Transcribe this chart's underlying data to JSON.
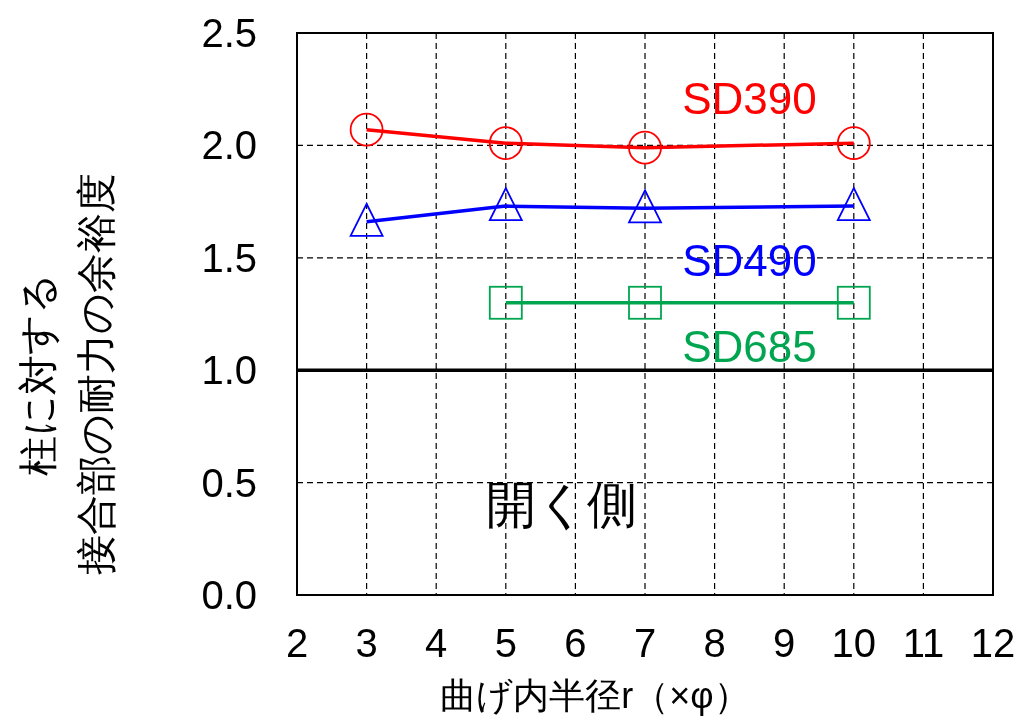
{
  "chart_data": {
    "type": "line",
    "xlabel": "曲げ内半径r（×φ）",
    "ylabel": "柱に対する接合部の耐力の余裕度",
    "xlim": [
      2,
      12
    ],
    "xticks": [
      2,
      3,
      4,
      5,
      6,
      7,
      8,
      9,
      10,
      11,
      12
    ],
    "ylim": [
      0,
      2.5
    ],
    "yticks": [
      {
        "value": 0,
        "label": "0.0"
      },
      {
        "value": 0.5,
        "label": "0.5"
      },
      {
        "value": 1,
        "label": "1.0"
      },
      {
        "value": 1.5,
        "label": "1.5"
      },
      {
        "value": 2,
        "label": "2.0"
      },
      {
        "value": 2.5,
        "label": "2.5"
      }
    ],
    "grid": true,
    "line_style": "solid",
    "series": [
      {
        "name": "SD390",
        "color": "#ff0000",
        "marker": "circle",
        "x": [
          3,
          5,
          7,
          10
        ],
        "values": [
          2.07,
          2.01,
          1.99,
          2.01
        ]
      },
      {
        "name": "SD490",
        "color": "#0000ff",
        "marker": "triangle",
        "x": [
          3,
          5,
          7,
          10
        ],
        "values": [
          1.66,
          1.73,
          1.72,
          1.73
        ]
      },
      {
        "name": "SD685",
        "color": "#00a550",
        "marker": "square",
        "x": [
          5,
          7,
          10
        ],
        "values": [
          1.3,
          1.3,
          1.3
        ]
      }
    ],
    "ref_lines": [
      {
        "axis": "y",
        "value": 1.0,
        "label": null,
        "color": "#000000"
      }
    ],
    "annotations": [
      "開く側"
    ]
  }
}
